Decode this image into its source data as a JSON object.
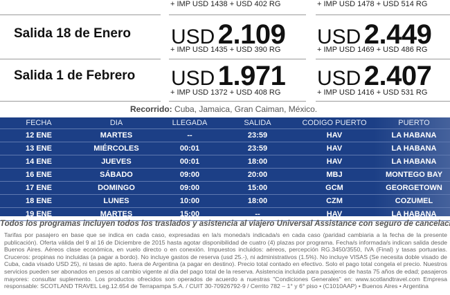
{
  "departures": [
    {
      "label": "",
      "col1": {
        "currency": "",
        "amount": "",
        "taxes": "+ IMP USD 1438 + USD 402 RG"
      },
      "col2": {
        "currency": "",
        "amount": "",
        "taxes": "+ IMP USD 1478 + USD 514 RG"
      }
    },
    {
      "label": "Salida 18 de Enero",
      "col1": {
        "currency": "USD",
        "amount": "2.109",
        "taxes": "+ IMP USD 1435 + USD 390 RG"
      },
      "col2": {
        "currency": "USD",
        "amount": "2.449",
        "taxes": "+ IMP USD 1469 + USD 486 RG"
      }
    },
    {
      "label": "Salida 1 de Febrero",
      "col1": {
        "currency": "USD",
        "amount": "1.971",
        "taxes": "+ IMP USD 1372 + USD 408 RG"
      },
      "col2": {
        "currency": "USD",
        "amount": "2.407",
        "taxes": "+ IMP USD 1416 + USD 531 RG"
      }
    }
  ],
  "route": {
    "label": "Recorrido:",
    "text": "Cuba, Jamaica, Gran Caiman, México."
  },
  "itinerary": {
    "headers": [
      "FECHA",
      "DIA",
      "LLEGADA",
      "SALIDA",
      "CODIGO PUERTO",
      "PUERTO"
    ],
    "rows": [
      [
        "12 ENE",
        "MARTES",
        "--",
        "23:59",
        "HAV",
        "LA HABANA"
      ],
      [
        "13 ENE",
        "MIÉRCOLES",
        "00:01",
        "23:59",
        "HAV",
        "LA HABANA"
      ],
      [
        "14 ENE",
        "JUEVES",
        "00:01",
        "18:00",
        "HAV",
        "LA HABANA"
      ],
      [
        "16 ENE",
        "SÁBADO",
        "09:00",
        "20:00",
        "MBJ",
        "MONTEGO BAY"
      ],
      [
        "17 ENE",
        "DOMINGO",
        "09:00",
        "15:00",
        "GCM",
        "GEORGETOWN"
      ],
      [
        "18 ENE",
        "LUNES",
        "10:00",
        "18:00",
        "CZM",
        "COZUMEL"
      ],
      [
        "19 ENE",
        "MARTES",
        "15:00",
        "--",
        "HAV",
        "LA HABANA"
      ]
    ]
  },
  "notes": {
    "main": "Todos los programas incluyen todos los traslados y asistencia al viajero Universal Assistance con seguro de cancelación.",
    "fine_print": "Tarifas por pasajero en base que se indica en cada caso, expresadas en la/s moneda/s indicada/s en cada caso (paridad cambiaria a la fecha de la presente publicación). Oferta válida del 9 al 16 de Diciembre de 2015 hasta agotar disponibilidad de cuatro (4) plazas por programa. Fecha/s informada/s indican salida desde Buenos Aires. Aéreos clase económica, en vuelo directo o en conexión. Impuestos incluidos: aéreos, percepción RG.3450/3550, IVA (Final) y tasas portuarias. Cruceros: propinas no incluidas (a pagar a bordo). No incluye gastos de reserva (usd 25.-), ni administrativos (1.5%). No incluye VISAS (Se necesita doble visado de Cuba, cada visado USD 25), ni tasas de apto. fuera de Argentina (a pagar en destino). Precio total contado en efectivo. Solo el pago total congela el precio. Nuestros servicios pueden ser abonados en pesos al cambio vigente al día del pago total de la reserva. Asistencia incluida para pasajeros de hasta 75 años de edad; pasajeros mayores: consultar suplemento. Los productos ofrecidos son operados de acuerdo a nuestras \"Condiciones Generales\" en: www.scotlandtravel.com Empresa responsable: SCOTLAND TRAVEL Leg.12.654 de Terrapampa S.A. / CUIT 30-70926792-9 / Cerrito 782 – 1° y 6° piso • (C1010AAP) • Buenos Aires • Argentina"
  }
}
